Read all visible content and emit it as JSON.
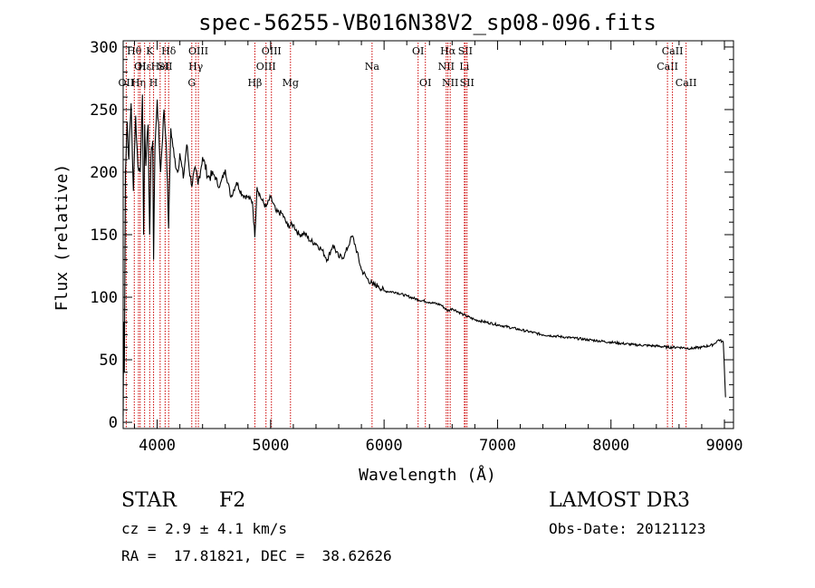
{
  "chart_data": {
    "type": "line",
    "title": "spec-56255-VB016N38V2_sp08-096.fits",
    "xlabel": "Wavelength (Å)",
    "ylabel": "Flux (relative)",
    "xlim": [
      3700,
      9080
    ],
    "ylim": [
      -5,
      305
    ],
    "xticks": [
      4000,
      5000,
      6000,
      7000,
      8000,
      9000
    ],
    "xtick_labels": [
      "4000",
      "5000",
      "6000",
      "7000",
      "8000",
      "9000"
    ],
    "yticks": [
      0,
      50,
      100,
      150,
      200,
      250,
      300
    ],
    "ytick_labels": [
      "0",
      "50",
      "100",
      "150",
      "200",
      "250",
      "300"
    ],
    "series": [
      {
        "name": "spectrum",
        "x": [
          3700,
          3705,
          3710,
          3720,
          3735,
          3750,
          3770,
          3790,
          3810,
          3830,
          3850,
          3870,
          3880,
          3890,
          3900,
          3920,
          3934,
          3945,
          3960,
          3968,
          3980,
          4000,
          4030,
          4060,
          4080,
          4101,
          4120,
          4150,
          4180,
          4200,
          4230,
          4260,
          4300,
          4340,
          4360,
          4400,
          4450,
          4500,
          4550,
          4600,
          4650,
          4700,
          4750,
          4800,
          4840,
          4861,
          4880,
          4920,
          4960,
          5000,
          5050,
          5100,
          5150,
          5200,
          5250,
          5300,
          5350,
          5400,
          5450,
          5500,
          5550,
          5600,
          5650,
          5700,
          5720,
          5750,
          5800,
          5850,
          5900,
          5950,
          6000,
          6100,
          6200,
          6300,
          6400,
          6500,
          6563,
          6600,
          6700,
          6800,
          7000,
          7200,
          7400,
          7600,
          7800,
          8000,
          8200,
          8400,
          8500,
          8600,
          8700,
          8800,
          8900,
          8950,
          8990,
          9010
        ],
        "values": [
          5,
          80,
          40,
          200,
          240,
          210,
          255,
          185,
          245,
          205,
          200,
          262,
          150,
          238,
          205,
          238,
          150,
          212,
          225,
          130,
          218,
          258,
          200,
          250,
          222,
          155,
          235,
          212,
          200,
          215,
          195,
          222,
          190,
          202,
          190,
          212,
          196,
          198,
          188,
          202,
          180,
          192,
          182,
          180,
          176,
          148,
          188,
          178,
          172,
          180,
          168,
          167,
          157,
          158,
          150,
          151,
          145,
          143,
          138,
          130,
          142,
          132,
          133,
          145,
          149,
          140,
          122,
          115,
          110,
          109,
          105,
          104,
          101,
          98,
          96,
          94,
          89,
          91,
          86,
          82,
          78,
          74,
          70,
          68,
          66,
          64,
          62,
          61,
          60,
          60,
          59,
          60,
          62,
          66,
          64,
          20
        ]
      }
    ],
    "line_annotations": [
      {
        "label": "OII",
        "wavelength": 3727,
        "row": 2
      },
      {
        "label": "Hθ",
        "wavelength": 3798,
        "row": 0
      },
      {
        "label": "Hη",
        "wavelength": 3835,
        "row": 2
      },
      {
        "label": "OI",
        "wavelength": 3850,
        "row": 1
      },
      {
        "label": "Hε",
        "wavelength": 3889,
        "row": 1
      },
      {
        "label": "K",
        "wavelength": 3934,
        "row": 0
      },
      {
        "label": "H",
        "wavelength": 3968,
        "row": 2
      },
      {
        "label": "HeI",
        "wavelength": 4026,
        "row": 1
      },
      {
        "label": "Hδ",
        "wavelength": 4101,
        "row": 0
      },
      {
        "label": "SII",
        "wavelength": 4070,
        "row": 1
      },
      {
        "label": "Hγ",
        "wavelength": 4340,
        "row": 1
      },
      {
        "label": "G",
        "wavelength": 4305,
        "row": 2
      },
      {
        "label": "OIII",
        "wavelength": 4363,
        "row": 0
      },
      {
        "label": "Hβ",
        "wavelength": 4861,
        "row": 2
      },
      {
        "label": "OIII",
        "wavelength": 4959,
        "row": 1
      },
      {
        "label": "OIII",
        "wavelength": 5007,
        "row": 0
      },
      {
        "label": "Mg",
        "wavelength": 5175,
        "row": 2
      },
      {
        "label": "Na",
        "wavelength": 5894,
        "row": 1
      },
      {
        "label": "OI",
        "wavelength": 6300,
        "row": 0
      },
      {
        "label": "OI",
        "wavelength": 6364,
        "row": 2
      },
      {
        "label": "NII",
        "wavelength": 6548,
        "row": 1
      },
      {
        "label": "Hα",
        "wavelength": 6563,
        "row": 0
      },
      {
        "label": "NII",
        "wavelength": 6583,
        "row": 2
      },
      {
        "label": "SII",
        "wavelength": 6716,
        "row": 0
      },
      {
        "label": "Li",
        "wavelength": 6708,
        "row": 1
      },
      {
        "label": "SII",
        "wavelength": 6731,
        "row": 2
      },
      {
        "label": "CaII",
        "wavelength": 8498,
        "row": 1
      },
      {
        "label": "CaII",
        "wavelength": 8542,
        "row": 0
      },
      {
        "label": "CaII",
        "wavelength": 8662,
        "row": 2
      }
    ],
    "grid": false,
    "legend": "none"
  },
  "info": {
    "class_label": "STAR",
    "subclass": "F2",
    "survey": "LAMOST DR3",
    "redshift": "cz = 2.9 ± 4.1 km/s",
    "obs_date": "Obs-Date: 20121123",
    "coords": "RA =  17.81821, DEC =  38.62626"
  },
  "colors": {
    "line": "#000000",
    "marker_lines": "#cc0000",
    "axes": "#000000"
  }
}
